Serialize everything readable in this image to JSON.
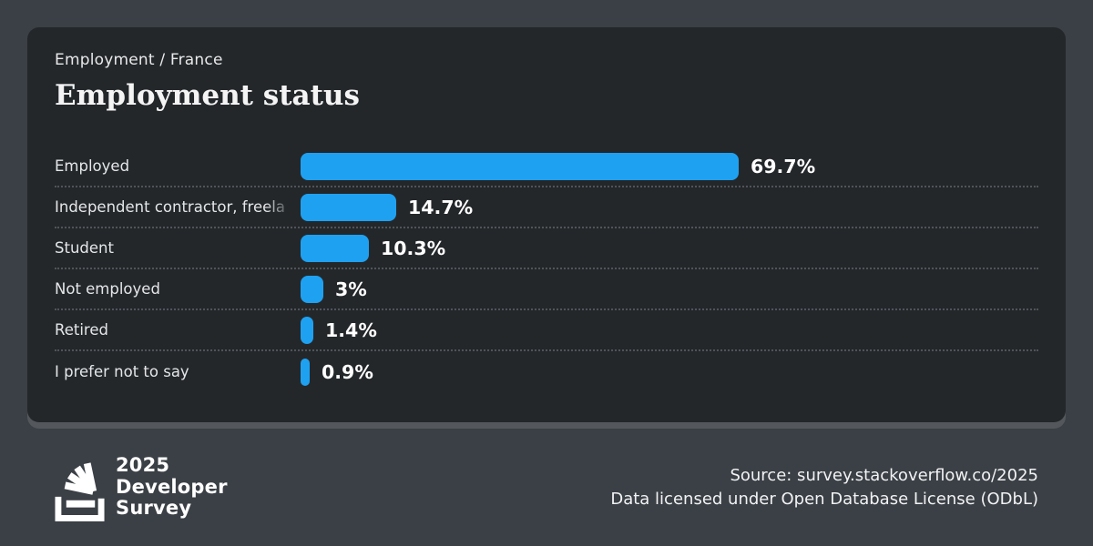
{
  "colors": {
    "background": "#3b4046",
    "card": "#24272a",
    "bar": "#1fa1f1"
  },
  "header": {
    "breadcrumb": "Employment / France",
    "title": "Employment status"
  },
  "chart_data": {
    "type": "bar",
    "orientation": "horizontal",
    "title": "Employment status",
    "categories": [
      "Employed",
      "Independent contractor, freela",
      "Student",
      "Not employed",
      "Retired",
      "I prefer not to say"
    ],
    "values": [
      69.7,
      14.7,
      10.3,
      3,
      1.4,
      0.9
    ],
    "value_labels": [
      "69.7%",
      "14.7%",
      "10.3%",
      "3%",
      "1.4%",
      "0.9%"
    ],
    "unit": "%",
    "xlim": [
      0,
      100
    ],
    "bar_color": "#1fa1f1",
    "grid": false,
    "legend": false
  },
  "footer": {
    "logo": {
      "icon": "stackoverflow-stack-icon",
      "lines": [
        "2025",
        "Developer",
        "Survey"
      ]
    },
    "source_line1": "Source: survey.stackoverflow.co/2025",
    "source_line2": "Data licensed under Open Database License (ODbL)"
  }
}
